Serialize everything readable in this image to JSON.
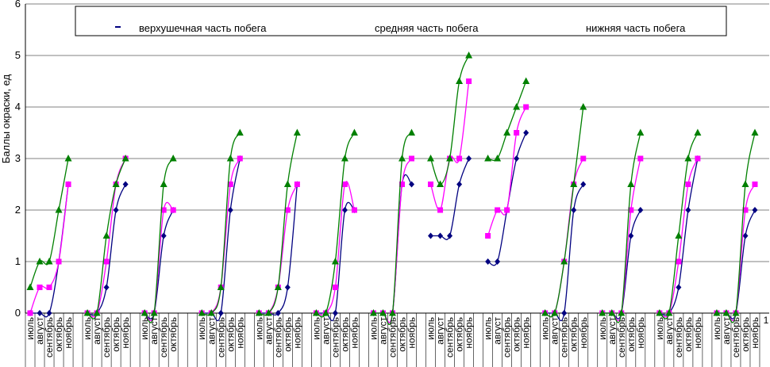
{
  "chart_data": {
    "type": "line",
    "ylabel": "Баллы окраски, ед",
    "ylim": [
      0,
      6
    ],
    "yticks": [
      "0",
      "1",
      "2",
      "3",
      "4",
      "5",
      "6"
    ],
    "grid": true,
    "legend_position": "top",
    "months": [
      "июль",
      "август",
      "сентябрь",
      "октябрь",
      "ноябрь"
    ],
    "extra_tick_label": "1",
    "colors": {
      "верхушечная часть побега": "#000080",
      "средняя часть побега": "#ff00ff",
      "нижняя часть побега": "#008000"
    },
    "series": [
      {
        "name": "верхушечная часть побега",
        "groups": [
          [
            0,
            0,
            0,
            1,
            2.5
          ],
          [
            0,
            0,
            0.5,
            2,
            2.5
          ],
          [
            0,
            0,
            1.5,
            2
          ],
          [
            0,
            0,
            0,
            2,
            3
          ],
          [
            0,
            0,
            0,
            0.5,
            2.5
          ],
          [
            0,
            0,
            0,
            2,
            2
          ],
          [
            0,
            0,
            0,
            2.5,
            2.5
          ],
          [
            1.5,
            1.5,
            1.5,
            2.5,
            3
          ],
          [
            1,
            1,
            2,
            3,
            3.5
          ],
          [
            0,
            0,
            0,
            2,
            2.5
          ],
          [
            0,
            0,
            0,
            1.5,
            2
          ],
          [
            0,
            0,
            0.5,
            2,
            3
          ],
          [
            0,
            0,
            0,
            1.5,
            2
          ]
        ]
      },
      {
        "name": "средняя часть побега",
        "groups": [
          [
            0,
            0.5,
            0.5,
            1,
            2.5
          ],
          [
            0,
            0,
            1,
            2.5,
            3
          ],
          [
            0,
            0,
            2,
            2
          ],
          [
            0,
            0,
            0.5,
            2.5,
            3
          ],
          [
            0,
            0,
            0.5,
            2,
            2.5
          ],
          [
            0,
            0,
            0.5,
            2.5,
            2
          ],
          [
            0,
            0,
            0,
            2.5,
            3
          ],
          [
            2.5,
            2,
            3,
            3,
            4.5
          ],
          [
            1.5,
            2,
            2,
            3.5,
            4
          ],
          [
            0,
            0,
            1,
            2.5,
            3
          ],
          [
            0,
            0,
            0,
            2,
            3
          ],
          [
            0,
            0,
            1,
            2.5,
            3
          ],
          [
            0,
            0,
            0,
            2,
            2.5
          ]
        ]
      },
      {
        "name": "нижняя часть побега",
        "groups": [
          [
            0.5,
            1,
            1,
            2,
            3
          ],
          [
            0,
            0,
            1.5,
            2.5,
            3
          ],
          [
            0,
            0,
            2.5,
            3
          ],
          [
            0,
            0,
            0.5,
            3,
            3.5
          ],
          [
            0,
            0,
            0.5,
            2.5,
            3.5
          ],
          [
            0,
            0,
            1,
            3,
            3.5
          ],
          [
            0,
            0,
            0,
            3,
            3.5
          ],
          [
            3,
            2.5,
            3,
            4.5,
            5
          ],
          [
            3,
            3,
            3.5,
            4,
            4.5
          ],
          [
            0,
            0,
            1,
            2.5,
            4
          ],
          [
            0,
            0,
            0,
            2.5,
            3.5
          ],
          [
            0,
            0,
            1.5,
            3,
            3.5
          ],
          [
            0,
            0,
            0,
            2.5,
            3.5
          ]
        ]
      }
    ]
  }
}
